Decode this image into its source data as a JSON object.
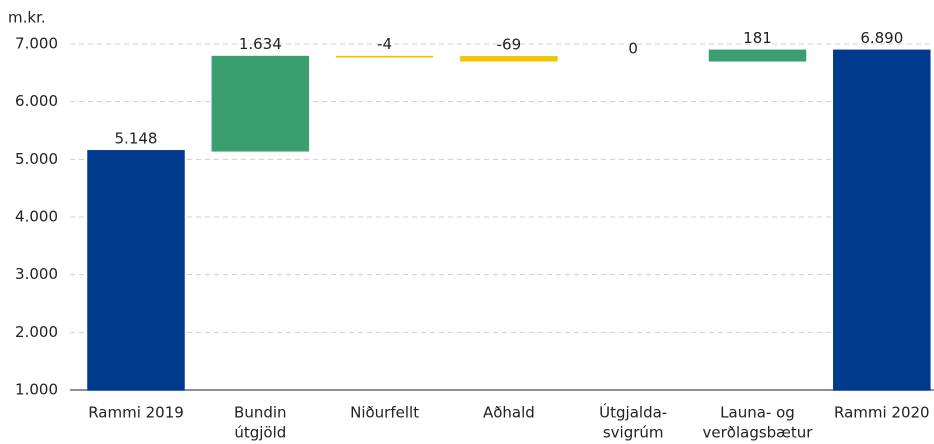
{
  "chart_data": {
    "type": "waterfall",
    "y_label": "m.kr.",
    "categories": [
      [
        "Rammi 2019"
      ],
      [
        "Bundin",
        "útgjöld"
      ],
      [
        "Niðurfellt"
      ],
      [
        "Aðhald"
      ],
      [
        "Útgjalda-",
        "svigrúm"
      ],
      [
        "Launa- og",
        "verðlagsbætur"
      ],
      [
        "Rammi 2020"
      ]
    ],
    "values": [
      5148,
      1634,
      -4,
      -69,
      0,
      181,
      6890
    ],
    "value_labels": [
      "5.148",
      "1.634",
      "-4",
      "-69",
      "0",
      "181",
      "6.890"
    ],
    "measure": [
      "absolute",
      "relative",
      "relative",
      "relative",
      "relative",
      "relative",
      "total"
    ],
    "colors": [
      "#003a8c",
      "#3a9e6e",
      "#f5c400",
      "#f5c400",
      "#f5c400",
      "#3a9e6e",
      "#003a8c"
    ],
    "ylim": [
      1000,
      7000
    ],
    "yticks": [
      {
        "value": 1000,
        "label": "1.000"
      },
      {
        "value": 2000,
        "label": "2.000"
      },
      {
        "value": 3000,
        "label": "3.000"
      },
      {
        "value": 4000,
        "label": "4.000"
      },
      {
        "value": 5000,
        "label": "5.000"
      },
      {
        "value": 6000,
        "label": "6.000"
      },
      {
        "value": 7000,
        "label": "7.000"
      }
    ],
    "grid": true
  }
}
